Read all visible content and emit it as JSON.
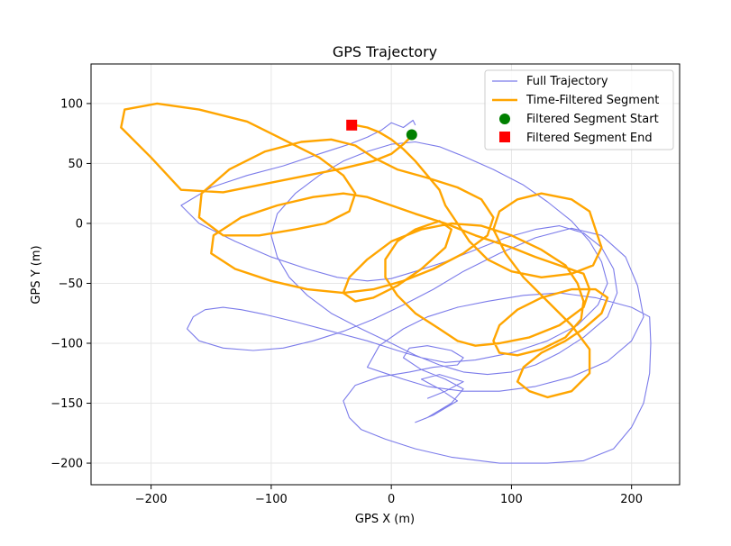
{
  "chart_data": {
    "type": "line",
    "title": "GPS Trajectory",
    "xlabel": "GPS X (m)",
    "ylabel": "GPS Y (m)",
    "xlim": [
      -250,
      240
    ],
    "ylim": [
      -218,
      133
    ],
    "xticks": [
      -200,
      -100,
      0,
      100,
      200
    ],
    "yticks": [
      -200,
      -150,
      -100,
      -50,
      0,
      50,
      100
    ],
    "xtick_labels": [
      "−200",
      "−100",
      "0",
      "100",
      "200"
    ],
    "ytick_labels": [
      "−200",
      "−150",
      "−100",
      "−50",
      "0",
      "50",
      "100"
    ],
    "grid": true,
    "legend_position": "top-right",
    "colors": {
      "full": "#7b7bea",
      "filtered": "#ffa500",
      "start": "#008000",
      "end": "#ff0000"
    },
    "series": [
      {
        "name": "Full Trajectory",
        "x": [
          20,
          18,
          10,
          0,
          -8,
          -20,
          -35,
          -60,
          -90,
          -120,
          -150,
          -175,
          -160,
          -130,
          -100,
          -70,
          -45,
          -20,
          0,
          20,
          45,
          70,
          95,
          120,
          140,
          160,
          175,
          185,
          188,
          180,
          160,
          140,
          120,
          100,
          80,
          60,
          40,
          20,
          0,
          -25,
          -50,
          -70,
          -85,
          -95,
          -100,
          -95,
          -80,
          -60,
          -40,
          -20,
          0,
          20,
          40,
          60,
          85,
          110,
          130,
          150,
          165,
          175,
          180,
          172,
          155,
          130,
          100,
          70,
          45,
          25,
          5,
          -20,
          -50,
          -80,
          -105,
          -125,
          -140,
          -155,
          -165,
          -170,
          -160,
          -140,
          -115,
          -90,
          -65,
          -40,
          -15,
          10,
          35,
          60,
          90,
          120,
          150,
          175,
          195,
          205,
          210,
          200,
          180,
          150,
          120,
          90,
          60,
          30,
          10,
          -5,
          -20,
          -10,
          10,
          30,
          55,
          80,
          110,
          140,
          170,
          200,
          215,
          216,
          215,
          210,
          200,
          185,
          160,
          130,
          90,
          50,
          20,
          -5,
          -25,
          -35,
          -40,
          -30,
          -10,
          15,
          35,
          55,
          60,
          50,
          30,
          15,
          10,
          25,
          45,
          60,
          50,
          30,
          20,
          35,
          55,
          40,
          25,
          40,
          60,
          45,
          30
        ],
        "y": [
          82,
          86,
          80,
          84,
          78,
          72,
          66,
          58,
          48,
          40,
          30,
          15,
          0,
          -15,
          -28,
          -38,
          -45,
          -48,
          -46,
          -40,
          -32,
          -22,
          -12,
          -5,
          -2,
          -8,
          -20,
          -38,
          -58,
          -78,
          -95,
          -108,
          -118,
          -124,
          -126,
          -124,
          -118,
          -110,
          -100,
          -88,
          -75,
          -60,
          -45,
          -28,
          -10,
          8,
          25,
          40,
          52,
          60,
          66,
          68,
          64,
          56,
          45,
          32,
          18,
          2,
          -15,
          -32,
          -50,
          -68,
          -85,
          -98,
          -108,
          -114,
          -116,
          -112,
          -106,
          -98,
          -90,
          -82,
          -76,
          -72,
          -70,
          -72,
          -78,
          -88,
          -98,
          -104,
          -106,
          -104,
          -98,
          -90,
          -80,
          -68,
          -55,
          -40,
          -25,
          -12,
          -4,
          -10,
          -28,
          -52,
          -78,
          -98,
          -115,
          -128,
          -136,
          -140,
          -140,
          -136,
          -130,
          -125,
          -120,
          -102,
          -88,
          -78,
          -70,
          -65,
          -60,
          -58,
          -62,
          -70,
          -78,
          -100,
          -125,
          -150,
          -170,
          -188,
          -198,
          -200,
          -200,
          -195,
          -188,
          -180,
          -172,
          -162,
          -148,
          -135,
          -128,
          -124,
          -120,
          -118,
          -112,
          -106,
          -102,
          -104,
          -112,
          -122,
          -130,
          -138,
          -150,
          -162,
          -166,
          -160,
          -148,
          -138,
          -130,
          -126,
          -132,
          -140,
          -146
        ]
      },
      {
        "name": "Time-Filtered Segment",
        "x": [
          18,
          10,
          0,
          -15,
          -40,
          -70,
          -100,
          -140,
          -175,
          -200,
          -225,
          -222,
          -195,
          -160,
          -120,
          -90,
          -60,
          -40,
          -30,
          -35,
          -55,
          -80,
          -110,
          -140,
          -160,
          -158,
          -135,
          -105,
          -75,
          -50,
          -30,
          -15,
          5,
          30,
          55,
          75,
          85,
          80,
          60,
          35,
          10,
          -15,
          -40,
          -70,
          -100,
          -130,
          -150,
          -148,
          -125,
          -95,
          -65,
          -40,
          -20,
          0,
          20,
          45,
          70,
          100,
          120,
          140,
          160,
          165,
          160,
          140,
          115,
          90,
          70,
          55,
          40,
          20,
          5,
          -5,
          -5,
          5,
          20,
          40,
          50,
          45,
          25,
          5,
          -15,
          -30,
          -40,
          -35,
          -20,
          0,
          25,
          50,
          75,
          100,
          125,
          145,
          155,
          160,
          158,
          145,
          125,
          105,
          90,
          85,
          90,
          105,
          125,
          150,
          170,
          180,
          175,
          160,
          145,
          125,
          110,
          105,
          115,
          130,
          150,
          165,
          165,
          150,
          130,
          110,
          95,
          85,
          90,
          105,
          125,
          150,
          165,
          170,
          175,
          168,
          150,
          125,
          100,
          80,
          65,
          55,
          45,
          40,
          30,
          20,
          10,
          0,
          -10,
          -20,
          -30,
          -35,
          -33
        ],
        "y": [
          74,
          66,
          58,
          52,
          46,
          40,
          34,
          26,
          28,
          55,
          80,
          95,
          100,
          95,
          85,
          70,
          55,
          40,
          25,
          10,
          0,
          -5,
          -10,
          -10,
          5,
          25,
          45,
          60,
          68,
          70,
          65,
          55,
          45,
          38,
          30,
          20,
          5,
          -10,
          -25,
          -38,
          -48,
          -55,
          -58,
          -55,
          -48,
          -38,
          -25,
          -10,
          5,
          15,
          22,
          25,
          22,
          15,
          8,
          0,
          -10,
          -20,
          -28,
          -35,
          -42,
          -55,
          -70,
          -85,
          -95,
          -100,
          -102,
          -98,
          -88,
          -75,
          -60,
          -45,
          -30,
          -15,
          -5,
          2,
          -5,
          -20,
          -38,
          -52,
          -62,
          -65,
          -58,
          -45,
          -30,
          -15,
          -5,
          0,
          -2,
          -10,
          -22,
          -35,
          -50,
          -65,
          -80,
          -95,
          -105,
          -110,
          -108,
          -98,
          -85,
          -72,
          -62,
          -55,
          -55,
          -62,
          -75,
          -88,
          -98,
          -108,
          -120,
          -132,
          -140,
          -145,
          -140,
          -125,
          -105,
          -85,
          -65,
          -45,
          -25,
          -5,
          10,
          20,
          25,
          20,
          10,
          -5,
          -20,
          -35,
          -42,
          -45,
          -40,
          -30,
          -15,
          0,
          15,
          28,
          40,
          52,
          62,
          70,
          76,
          80,
          82,
          82,
          82
        ]
      }
    ],
    "markers": [
      {
        "name": "Filtered Segment Start",
        "x": 17,
        "y": 74,
        "shape": "circle"
      },
      {
        "name": "Filtered Segment End",
        "x": -33,
        "y": 82,
        "shape": "square"
      }
    ]
  }
}
